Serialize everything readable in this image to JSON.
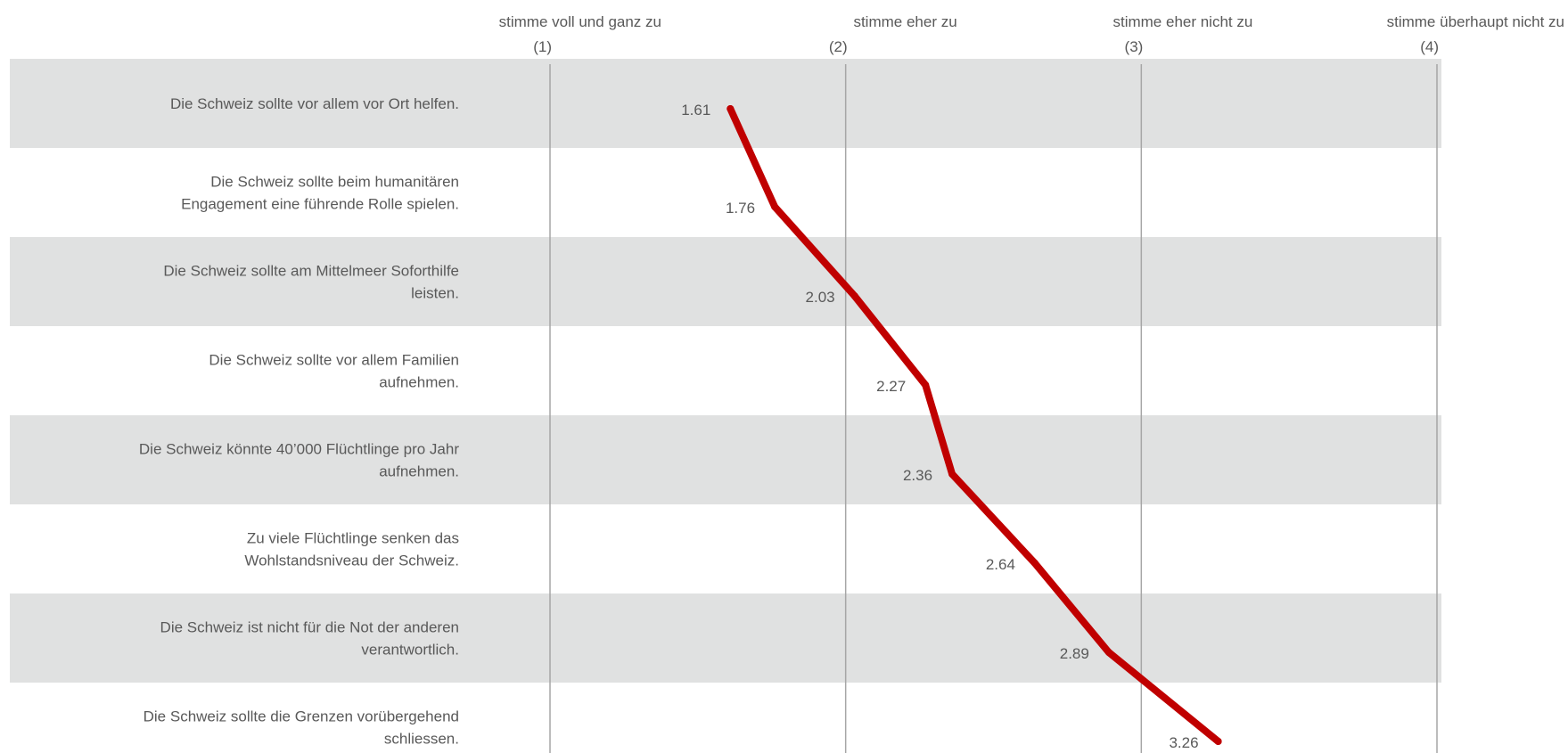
{
  "chart_data": {
    "type": "line",
    "scale_headings": [
      {
        "label": "stimme voll und ganz zu",
        "code": "(1)",
        "value": 1
      },
      {
        "label": "stimme eher zu",
        "code": "(2)",
        "value": 2
      },
      {
        "label": "stimme eher nicht zu",
        "code": "(3)",
        "value": 3
      },
      {
        "label": "stimme überhaupt nicht zu",
        "code": "(4)",
        "value": 4
      }
    ],
    "xlim": [
      1,
      4
    ],
    "items": [
      {
        "label_lines": [
          "Die Schweiz sollte vor allem vor Ort helfen."
        ],
        "value": 1.61,
        "value_label": "1.61"
      },
      {
        "label_lines": [
          "Die Schweiz sollte beim humanitären",
          "Engagement eine führende Rolle spielen."
        ],
        "value": 1.76,
        "value_label": "1.76"
      },
      {
        "label_lines": [
          "Die Schweiz sollte am Mittelmeer Soforthilfe",
          "leisten."
        ],
        "value": 2.03,
        "value_label": "2.03"
      },
      {
        "label_lines": [
          "Die Schweiz sollte vor allem Familien",
          "aufnehmen."
        ],
        "value": 2.27,
        "value_label": "2.27"
      },
      {
        "label_lines": [
          "Die Schweiz könnte 40’000 Flüchtlinge pro Jahr",
          "aufnehmen."
        ],
        "value": 2.36,
        "value_label": "2.36"
      },
      {
        "label_lines": [
          "Zu viele Flüchtlinge senken das",
          "Wohlstandsniveau der Schweiz."
        ],
        "value": 2.64,
        "value_label": "2.64"
      },
      {
        "label_lines": [
          "Die Schweiz ist nicht für die Not der anderen",
          "verantwortlich."
        ],
        "value": 2.89,
        "value_label": "2.89"
      },
      {
        "label_lines": [
          "Die Schweiz sollte die Grenzen vorübergehend",
          "schliessen."
        ],
        "value": 3.26,
        "value_label": "3.26"
      }
    ],
    "grid": true,
    "colors": {
      "line": "#c00000",
      "band": "#e0e1e1",
      "gridline": "#a6a6a6",
      "text": "#595959"
    }
  }
}
